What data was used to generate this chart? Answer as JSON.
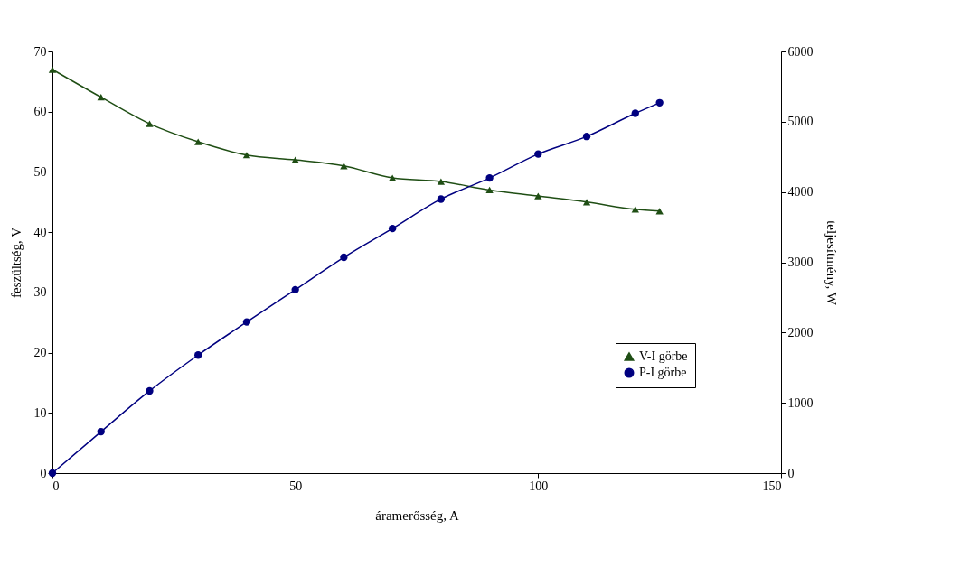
{
  "chart_data": {
    "type": "line",
    "xlabel": "áramerősség, A",
    "ylabel": "feszültség, V",
    "y2label": "teljesítmény, W",
    "x": [
      0,
      10,
      20,
      30,
      40,
      50,
      60,
      70,
      80,
      90,
      100,
      110,
      120,
      125
    ],
    "xlim": [
      0,
      150
    ],
    "xticks": [
      0,
      50,
      100,
      150
    ],
    "ylim": [
      0,
      70
    ],
    "yticks": [
      0,
      10,
      20,
      30,
      40,
      50,
      60,
      70
    ],
    "y2lim": [
      0,
      6000
    ],
    "y2ticks": [
      0,
      1000,
      2000,
      3000,
      4000,
      5000,
      6000
    ],
    "grid": false,
    "legend": "bottom right",
    "line_style": "solid",
    "series": [
      {
        "name": "V-I görbe",
        "color": "#1f4e14",
        "marker": "triangle",
        "values": [
          67,
          62.4,
          58,
          55,
          52.8,
          52,
          51,
          49,
          48.4,
          47,
          46,
          45,
          43.8,
          43.5
        ]
      },
      {
        "name": "P-I görbe",
        "color": "#000080",
        "marker": "circle",
        "axis": "y2",
        "values": [
          0,
          590,
          1170,
          1680,
          2150,
          2610,
          3070,
          3480,
          3900,
          4200,
          4540,
          4790,
          5120,
          5270
        ]
      }
    ]
  }
}
